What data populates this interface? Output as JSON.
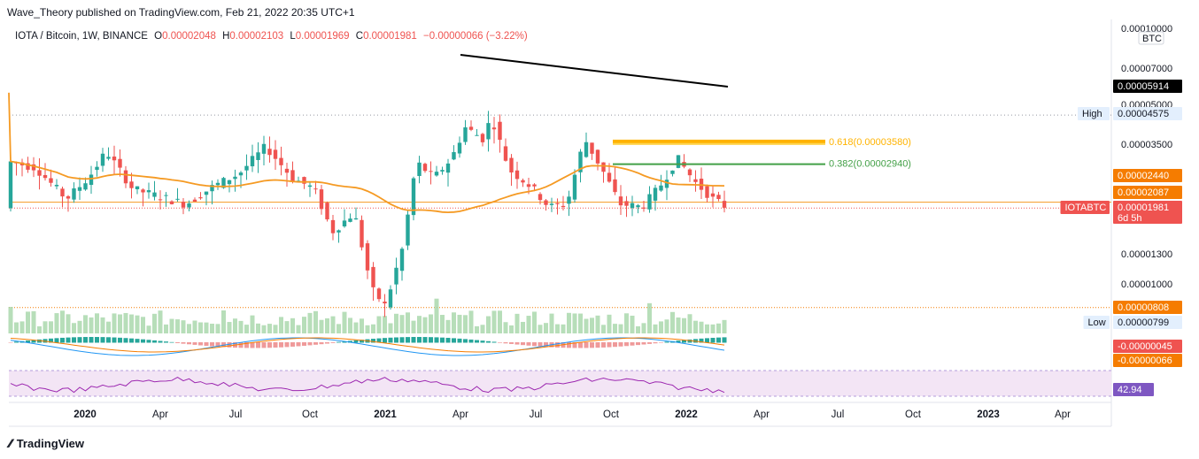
{
  "publisher": "Wave_Theory published on TradingView.com, Feb 21, 2022 20:35 UTC+1",
  "legend": {
    "symbol": "IOTA / Bitcoin, 1W, BINANCE",
    "o_label": "O",
    "o": "0.00002048",
    "h_label": "H",
    "h": "0.00002103",
    "l_label": "L",
    "l": "0.00001969",
    "c_label": "C",
    "c": "0.00001981",
    "change": "−0.00000066 (−3.22%)"
  },
  "footer": {
    "brand": "TradingView",
    "logo_icon": "tradingview-logo-icon"
  },
  "chart_data": {
    "type": "candlestick",
    "symbol": "IOTABTC",
    "currency_label": "BTC",
    "price_axis_ticks": [
      "0.00010000",
      "0.00007000",
      "0.00005000",
      "0.00003500",
      "0.00001300",
      "0.00001000"
    ],
    "time_axis_labels": [
      "2020",
      "Apr",
      "Jul",
      "Oct",
      "2021",
      "Apr",
      "Jul",
      "Oct",
      "2022",
      "Apr",
      "Jul",
      "Oct",
      "2023",
      "Apr"
    ],
    "price_labels": [
      {
        "text": "0.00005914",
        "label": "",
        "color": "#000000"
      },
      {
        "text": "0.00004575",
        "label": "High",
        "color": "#e3effd"
      },
      {
        "text": "0.00002440",
        "label": "",
        "color": "#f57c00"
      },
      {
        "text": "0.00002087",
        "label": "",
        "color": "#f57c00"
      },
      {
        "text": "0.00001981",
        "label": "IOTABTC",
        "sub": "6d 5h",
        "color": "#ef5350"
      },
      {
        "text": "0.00000808",
        "label": "",
        "color": "#f57c00"
      },
      {
        "text": "0.00000799",
        "label": "Low",
        "color": "#e3effd"
      },
      {
        "text": "-0.00000045",
        "label": "",
        "color": "#ef5350"
      },
      {
        "text": "-0.00000066",
        "label": "",
        "color": "#f57c00"
      },
      {
        "text": "42.94",
        "label": "",
        "color": "#7e57c2"
      }
    ],
    "fib_levels": [
      {
        "text": "0.618(0.00003580)",
        "color": "#ffb300"
      },
      {
        "text": "0.618(0.00003580)",
        "color": "#ffd54f"
      },
      {
        "text": "0.382(0.00002940)",
        "color": "#43a047"
      }
    ],
    "high_price": "0.00004575",
    "low_price": "0.00000799",
    "last_price": "0.00001981",
    "rsi_value": "42.94",
    "colors": {
      "up": "#26a69a",
      "down": "#ef5350",
      "ma": "#f59a23",
      "rsi": "#9c27b0",
      "rsi_bg": "#f3e5f5",
      "macd": "#2196f3",
      "signal": "#f57c00",
      "trend": "#000000"
    }
  }
}
